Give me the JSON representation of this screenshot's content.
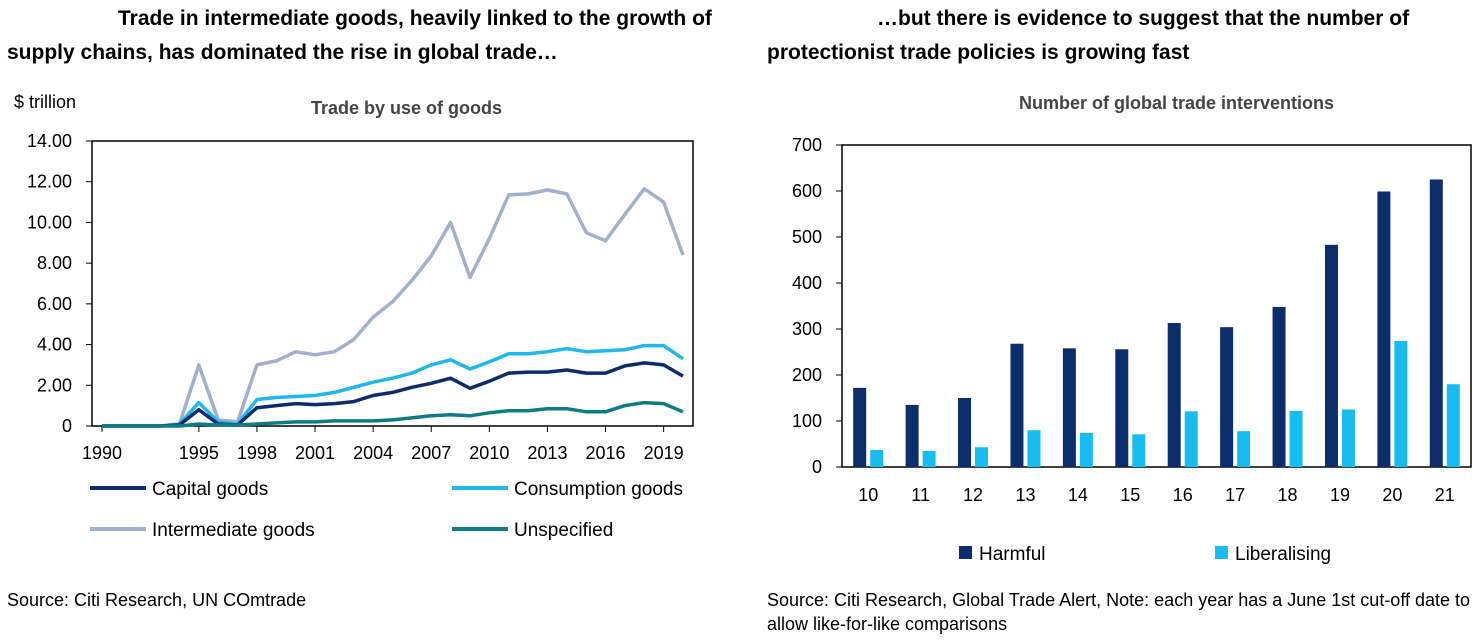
{
  "left_panel": {
    "heading_line1": "Trade in intermediate goods, heavily linked to the growth of",
    "heading_line2": "supply chains, has dominated the rise in global trade…",
    "source": "Source: Citi Research, UN COmtrade"
  },
  "right_panel": {
    "heading_line1": "…but there is evidence to suggest that the number of",
    "heading_line2": "protectionist trade policies is growing fast",
    "source": "Source: Citi Research, Global Trade Alert, Note: each year has a June 1st cut-off date to allow like-for-like comparisons"
  },
  "chart_data": [
    {
      "type": "line",
      "title": "Trade by use of goods",
      "ylabel": "$ trillion",
      "xlabel": "",
      "ylim": [
        0,
        14
      ],
      "yticks": [
        "0",
        "2.00",
        "4.00",
        "6.00",
        "8.00",
        "10.00",
        "12.00",
        "14.00"
      ],
      "xticks": [
        "1990",
        "1995",
        "1998",
        "2001",
        "2004",
        "2007",
        "2010",
        "2013",
        "2016",
        "2019"
      ],
      "grid": false,
      "legend_position": "bottom",
      "x": [
        1990,
        1991,
        1992,
        1993,
        1994,
        1995,
        1996,
        1997,
        1998,
        1999,
        2000,
        2001,
        2002,
        2003,
        2004,
        2005,
        2006,
        2007,
        2008,
        2009,
        2010,
        2011,
        2012,
        2013,
        2014,
        2015,
        2016,
        2017,
        2018,
        2019,
        2020
      ],
      "series": [
        {
          "name": "Capital goods",
          "color": "#0b2d6b",
          "values": [
            0,
            0,
            0,
            0,
            0.05,
            0.8,
            0.1,
            0.05,
            0.9,
            1.0,
            1.1,
            1.05,
            1.1,
            1.2,
            1.5,
            1.65,
            1.9,
            2.1,
            2.35,
            1.85,
            2.2,
            2.6,
            2.65,
            2.65,
            2.75,
            2.6,
            2.6,
            2.95,
            3.1,
            3.0,
            2.45
          ]
        },
        {
          "name": "Consumption goods",
          "color": "#1fb8ea",
          "values": [
            0,
            0,
            0,
            0,
            0.1,
            1.15,
            0.2,
            0.1,
            1.3,
            1.4,
            1.45,
            1.5,
            1.65,
            1.9,
            2.15,
            2.35,
            2.6,
            3.0,
            3.25,
            2.8,
            3.15,
            3.55,
            3.55,
            3.65,
            3.8,
            3.65,
            3.7,
            3.75,
            3.95,
            3.95,
            3.3
          ]
        },
        {
          "name": "Intermediate goods",
          "color": "#9fb1cf",
          "values": [
            0,
            0,
            0,
            0,
            0.1,
            3.0,
            0.3,
            0.2,
            3.0,
            3.2,
            3.65,
            3.5,
            3.65,
            4.25,
            5.35,
            6.1,
            7.15,
            8.35,
            10.0,
            7.3,
            9.2,
            11.35,
            11.4,
            11.6,
            11.4,
            9.5,
            9.1,
            10.4,
            11.65,
            11.0,
            8.4
          ]
        },
        {
          "name": "Unspecified",
          "color": "#0f7b84",
          "values": [
            0,
            0,
            0,
            0,
            0,
            0.1,
            0.05,
            0.05,
            0.1,
            0.15,
            0.2,
            0.2,
            0.25,
            0.25,
            0.25,
            0.3,
            0.4,
            0.5,
            0.55,
            0.5,
            0.65,
            0.75,
            0.75,
            0.85,
            0.85,
            0.7,
            0.7,
            1.0,
            1.15,
            1.1,
            0.7
          ]
        }
      ]
    },
    {
      "type": "bar",
      "title": "Number of global trade interventions",
      "xlabel": "",
      "ylabel": "",
      "ylim": [
        0,
        700
      ],
      "yticks": [
        "0",
        "100",
        "200",
        "300",
        "400",
        "500",
        "600",
        "700"
      ],
      "grid": false,
      "legend_position": "bottom",
      "categories": [
        "10",
        "11",
        "12",
        "13",
        "14",
        "15",
        "16",
        "17",
        "18",
        "19",
        "20",
        "21"
      ],
      "series": [
        {
          "name": "Harmful",
          "color": "#0b2d6b",
          "values": [
            172,
            135,
            150,
            268,
            258,
            256,
            313,
            304,
            348,
            483,
            599,
            625
          ]
        },
        {
          "name": "Liberalising",
          "color": "#17bdf0",
          "values": [
            37,
            35,
            43,
            80,
            74,
            71,
            121,
            78,
            122,
            125,
            274,
            180
          ]
        }
      ]
    }
  ]
}
